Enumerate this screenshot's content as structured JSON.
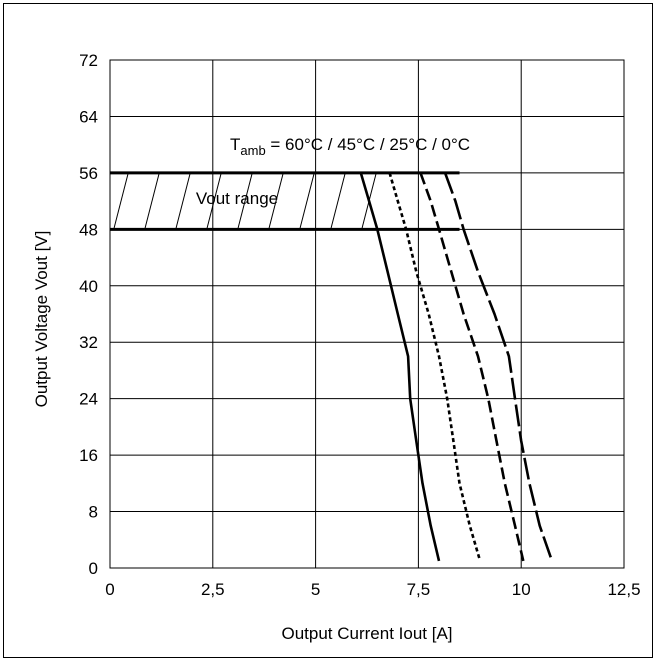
{
  "chart_data": {
    "type": "line",
    "title": "",
    "xlabel": "Output Current Iout [A]",
    "ylabel": "Output Voltage Vout [V]",
    "xlim": [
      0,
      12.5
    ],
    "ylim": [
      0,
      72
    ],
    "x_ticks": [
      "0",
      "2,5",
      "5",
      "7,5",
      "10",
      "12,5"
    ],
    "y_ticks": [
      "0",
      "8",
      "16",
      "24",
      "32",
      "40",
      "48",
      "56",
      "64",
      "72"
    ],
    "grid": true,
    "annotation": {
      "prefix": "T",
      "subscript": "amb",
      "suffix": " = 60°C / 45°C / 25°C / 0°C"
    },
    "vout_range": {
      "label": "Vout range",
      "y_min": 48,
      "y_max": 56,
      "x_max": 8.5
    },
    "series": [
      {
        "style": "solid",
        "x": [
          6.1,
          6.3,
          6.5,
          6.75,
          7.0,
          7.25,
          7.3,
          7.45,
          7.6,
          7.8,
          8.0
        ],
        "y": [
          56,
          52,
          48,
          42,
          36,
          30,
          24,
          18,
          12,
          6,
          1
        ]
      },
      {
        "style": "dotted",
        "x": [
          6.8,
          7.0,
          7.2,
          7.45,
          7.75,
          8.0,
          8.2,
          8.35,
          8.5,
          8.75,
          9.0
        ],
        "y": [
          56,
          52,
          48,
          42,
          36,
          30,
          24,
          18,
          12,
          6,
          1
        ]
      },
      {
        "style": "dash",
        "x": [
          7.55,
          7.8,
          8.0,
          8.3,
          8.6,
          8.95,
          9.2,
          9.4,
          9.6,
          9.85,
          10.05
        ],
        "y": [
          56,
          52,
          48,
          42,
          36,
          30,
          24,
          18,
          12,
          6,
          1
        ]
      },
      {
        "style": "longdash",
        "x": [
          8.15,
          8.4,
          8.6,
          8.95,
          9.35,
          9.7,
          9.85,
          10.0,
          10.2,
          10.45,
          10.75
        ],
        "y": [
          56,
          52,
          48,
          42,
          36,
          30,
          24,
          18,
          12,
          6,
          1
        ]
      }
    ]
  }
}
